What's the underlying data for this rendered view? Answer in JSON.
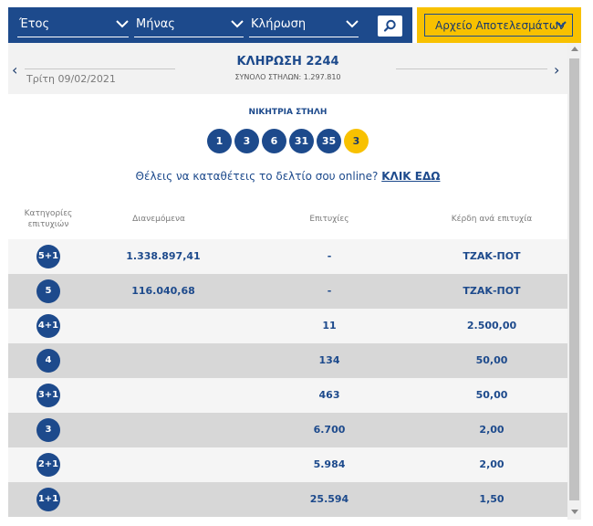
{
  "filters": {
    "year_label": "Έτος",
    "month_label": "Μήνας",
    "draw_label": "Κλήρωση",
    "archive_label": "Αρχείο Αποτελεσμάτων"
  },
  "draw": {
    "date": "Τρίτη 09/02/2021",
    "title": "ΚΛΗΡΩΣΗ 2244",
    "subtitle": "ΣΥΝΟΛΟ ΣΤΗΛΩΝ: 1.297.810",
    "nav_prev": "‹",
    "nav_next": "›"
  },
  "winning": {
    "label": "ΝΙΚΗΤΡΙΑ ΣΤΗΛΗ",
    "numbers": [
      "1",
      "3",
      "6",
      "31",
      "35"
    ],
    "joker": "3"
  },
  "cta": {
    "text": "Θέλεις να καταθέτεις το δελτίο σου online?",
    "link": "ΚΛΙΚ ΕΔΩ"
  },
  "table": {
    "headers": {
      "category_line1": "Κατηγορίες",
      "category_line2": "επιτυχιών",
      "distributed": "Διανεμόμενα",
      "wins": "Επιτυχίες",
      "prize": "Κέρδη ανά επιτυχία"
    },
    "rows": [
      {
        "cat": "5+1",
        "distributed": "1.338.897,41",
        "wins": "-",
        "prize": "ΤΖΑΚ-ΠΟΤ"
      },
      {
        "cat": "5",
        "distributed": "116.040,68",
        "wins": "-",
        "prize": "ΤΖΑΚ-ΠΟΤ"
      },
      {
        "cat": "4+1",
        "distributed": "",
        "wins": "11",
        "prize": "2.500,00"
      },
      {
        "cat": "4",
        "distributed": "",
        "wins": "134",
        "prize": "50,00"
      },
      {
        "cat": "3+1",
        "distributed": "",
        "wins": "463",
        "prize": "50,00"
      },
      {
        "cat": "3",
        "distributed": "",
        "wins": "6.700",
        "prize": "2,00"
      },
      {
        "cat": "2+1",
        "distributed": "",
        "wins": "5.984",
        "prize": "2,00"
      },
      {
        "cat": "1+1",
        "distributed": "",
        "wins": "25.594",
        "prize": "1,50"
      }
    ]
  },
  "colors": {
    "brand_blue": "#1d4a8c",
    "joker_yellow": "#f8c100"
  },
  "icons": {
    "search": "search-icon",
    "chevron": "chevron-down-icon"
  }
}
